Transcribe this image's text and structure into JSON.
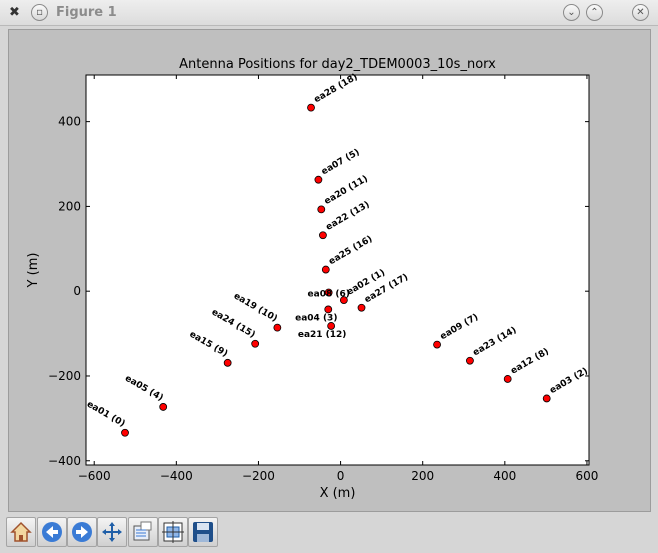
{
  "window": {
    "title": "Figure 1",
    "icons": [
      "x-app-icon",
      "menu-circle-icon",
      "minimize-icon",
      "maximize-icon",
      "close-icon"
    ]
  },
  "toolbar": {
    "buttons": [
      "home-icon",
      "back-arrow-icon",
      "forward-arrow-icon",
      "pan-move-icon",
      "zoom-rect-icon",
      "configure-subplots-icon",
      "save-floppy-icon"
    ]
  },
  "colors": {
    "figure_bg": "#bfbfbf",
    "axes_bg": "#ffffff",
    "marker": "#ff0000",
    "marker_edge": "#000000"
  },
  "chart_data": {
    "type": "scatter",
    "title": "Antenna Positions for day2_TDEM0003_10s_norx",
    "xlabel": "X (m)",
    "ylabel": "Y (m)",
    "xlim": [
      -620,
      605
    ],
    "ylim": [
      -410,
      510
    ],
    "xticks": [
      -600,
      -400,
      -200,
      0,
      200,
      400,
      600
    ],
    "xtick_labels": [
      "−600",
      "−400",
      "−200",
      "0",
      "200",
      "400",
      "600"
    ],
    "yticks": [
      -400,
      -200,
      0,
      200,
      400
    ],
    "ytick_labels": [
      "−400",
      "−200",
      "0",
      "200",
      "400"
    ],
    "grid": false,
    "legend": "none",
    "points": [
      {
        "label": "ea28 (18)",
        "x": -72,
        "y": 433
      },
      {
        "label": "ea07 (5)",
        "x": -54,
        "y": 263
      },
      {
        "label": "ea20 (11)",
        "x": -47,
        "y": 193
      },
      {
        "label": "ea22 (13)",
        "x": -43,
        "y": 132
      },
      {
        "label": "ea25 (16)",
        "x": -36,
        "y": 51
      },
      {
        "label": "ea08 (6)",
        "x": -29,
        "y": -3
      },
      {
        "label": "ea02 (1)",
        "x": 8,
        "y": -21
      },
      {
        "label": "ea27 (17)",
        "x": 51,
        "y": -39
      },
      {
        "label": "ea04 (3)",
        "x": -30,
        "y": -43
      },
      {
        "label": "ea21 (12)",
        "x": -23,
        "y": -82
      },
      {
        "label": "ea19 (10)",
        "x": -154,
        "y": -86
      },
      {
        "label": "ea24 (15)",
        "x": -208,
        "y": -124
      },
      {
        "label": "ea15 (9)",
        "x": -275,
        "y": -169
      },
      {
        "label": "ea05 (4)",
        "x": -432,
        "y": -273
      },
      {
        "label": "ea01 (0)",
        "x": -525,
        "y": -334
      },
      {
        "label": "ea09 (7)",
        "x": 235,
        "y": -126
      },
      {
        "label": "ea23 (14)",
        "x": 315,
        "y": -164
      },
      {
        "label": "ea12 (8)",
        "x": 407,
        "y": -207
      },
      {
        "label": "ea03 (2)",
        "x": 502,
        "y": -253
      }
    ]
  }
}
